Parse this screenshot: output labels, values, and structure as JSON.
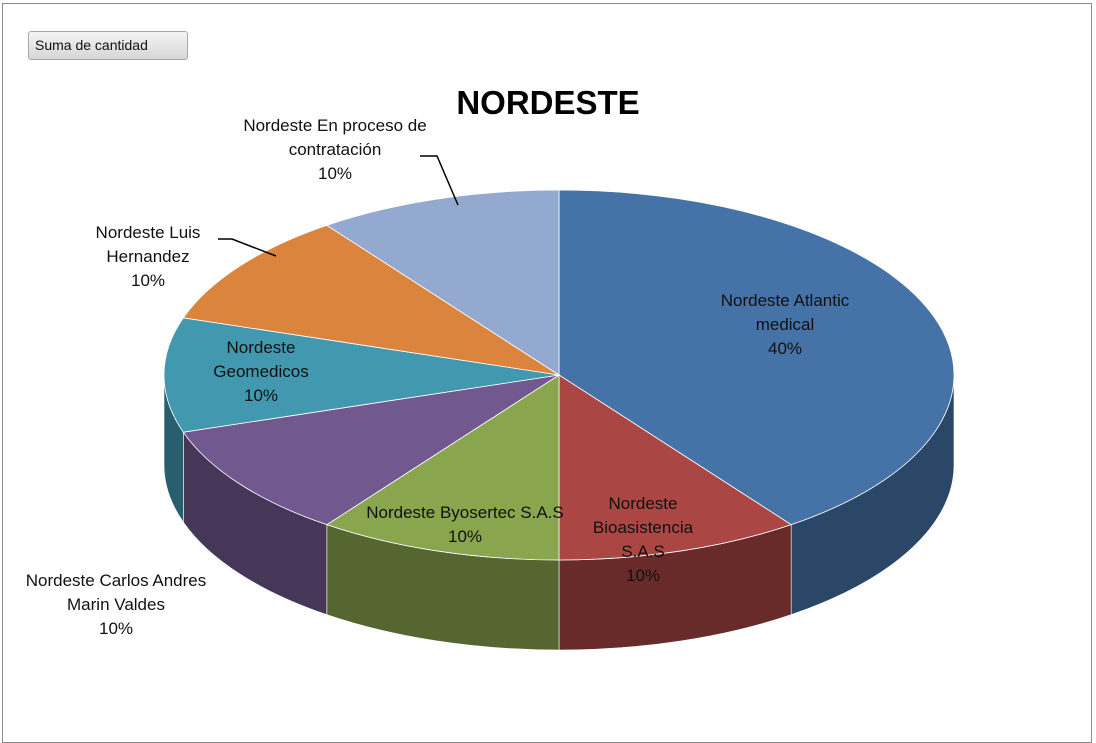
{
  "field_button": "Suma de cantidad",
  "chart_data": {
    "type": "pie3d",
    "title": "NORDESTE",
    "categories": [
      "Nordeste Atlantic medical",
      "Nordeste Bioasistencia S.A.S",
      "Nordeste Byosertec S.A.S",
      "Nordeste Carlos Andres Marin Valdes",
      "Nordeste Geomedicos",
      "Nordeste Luis Hernandez",
      "Nordeste En proceso de contratación"
    ],
    "values": [
      40,
      10,
      10,
      10,
      10,
      10,
      10
    ],
    "value_labels": [
      "40%",
      "10%",
      "10%",
      "10%",
      "10%",
      "10%",
      "10%"
    ],
    "colors": [
      "#4572a7",
      "#aa4643",
      "#89a54e",
      "#71588f",
      "#4198af",
      "#db843d",
      "#93a9cf"
    ]
  }
}
